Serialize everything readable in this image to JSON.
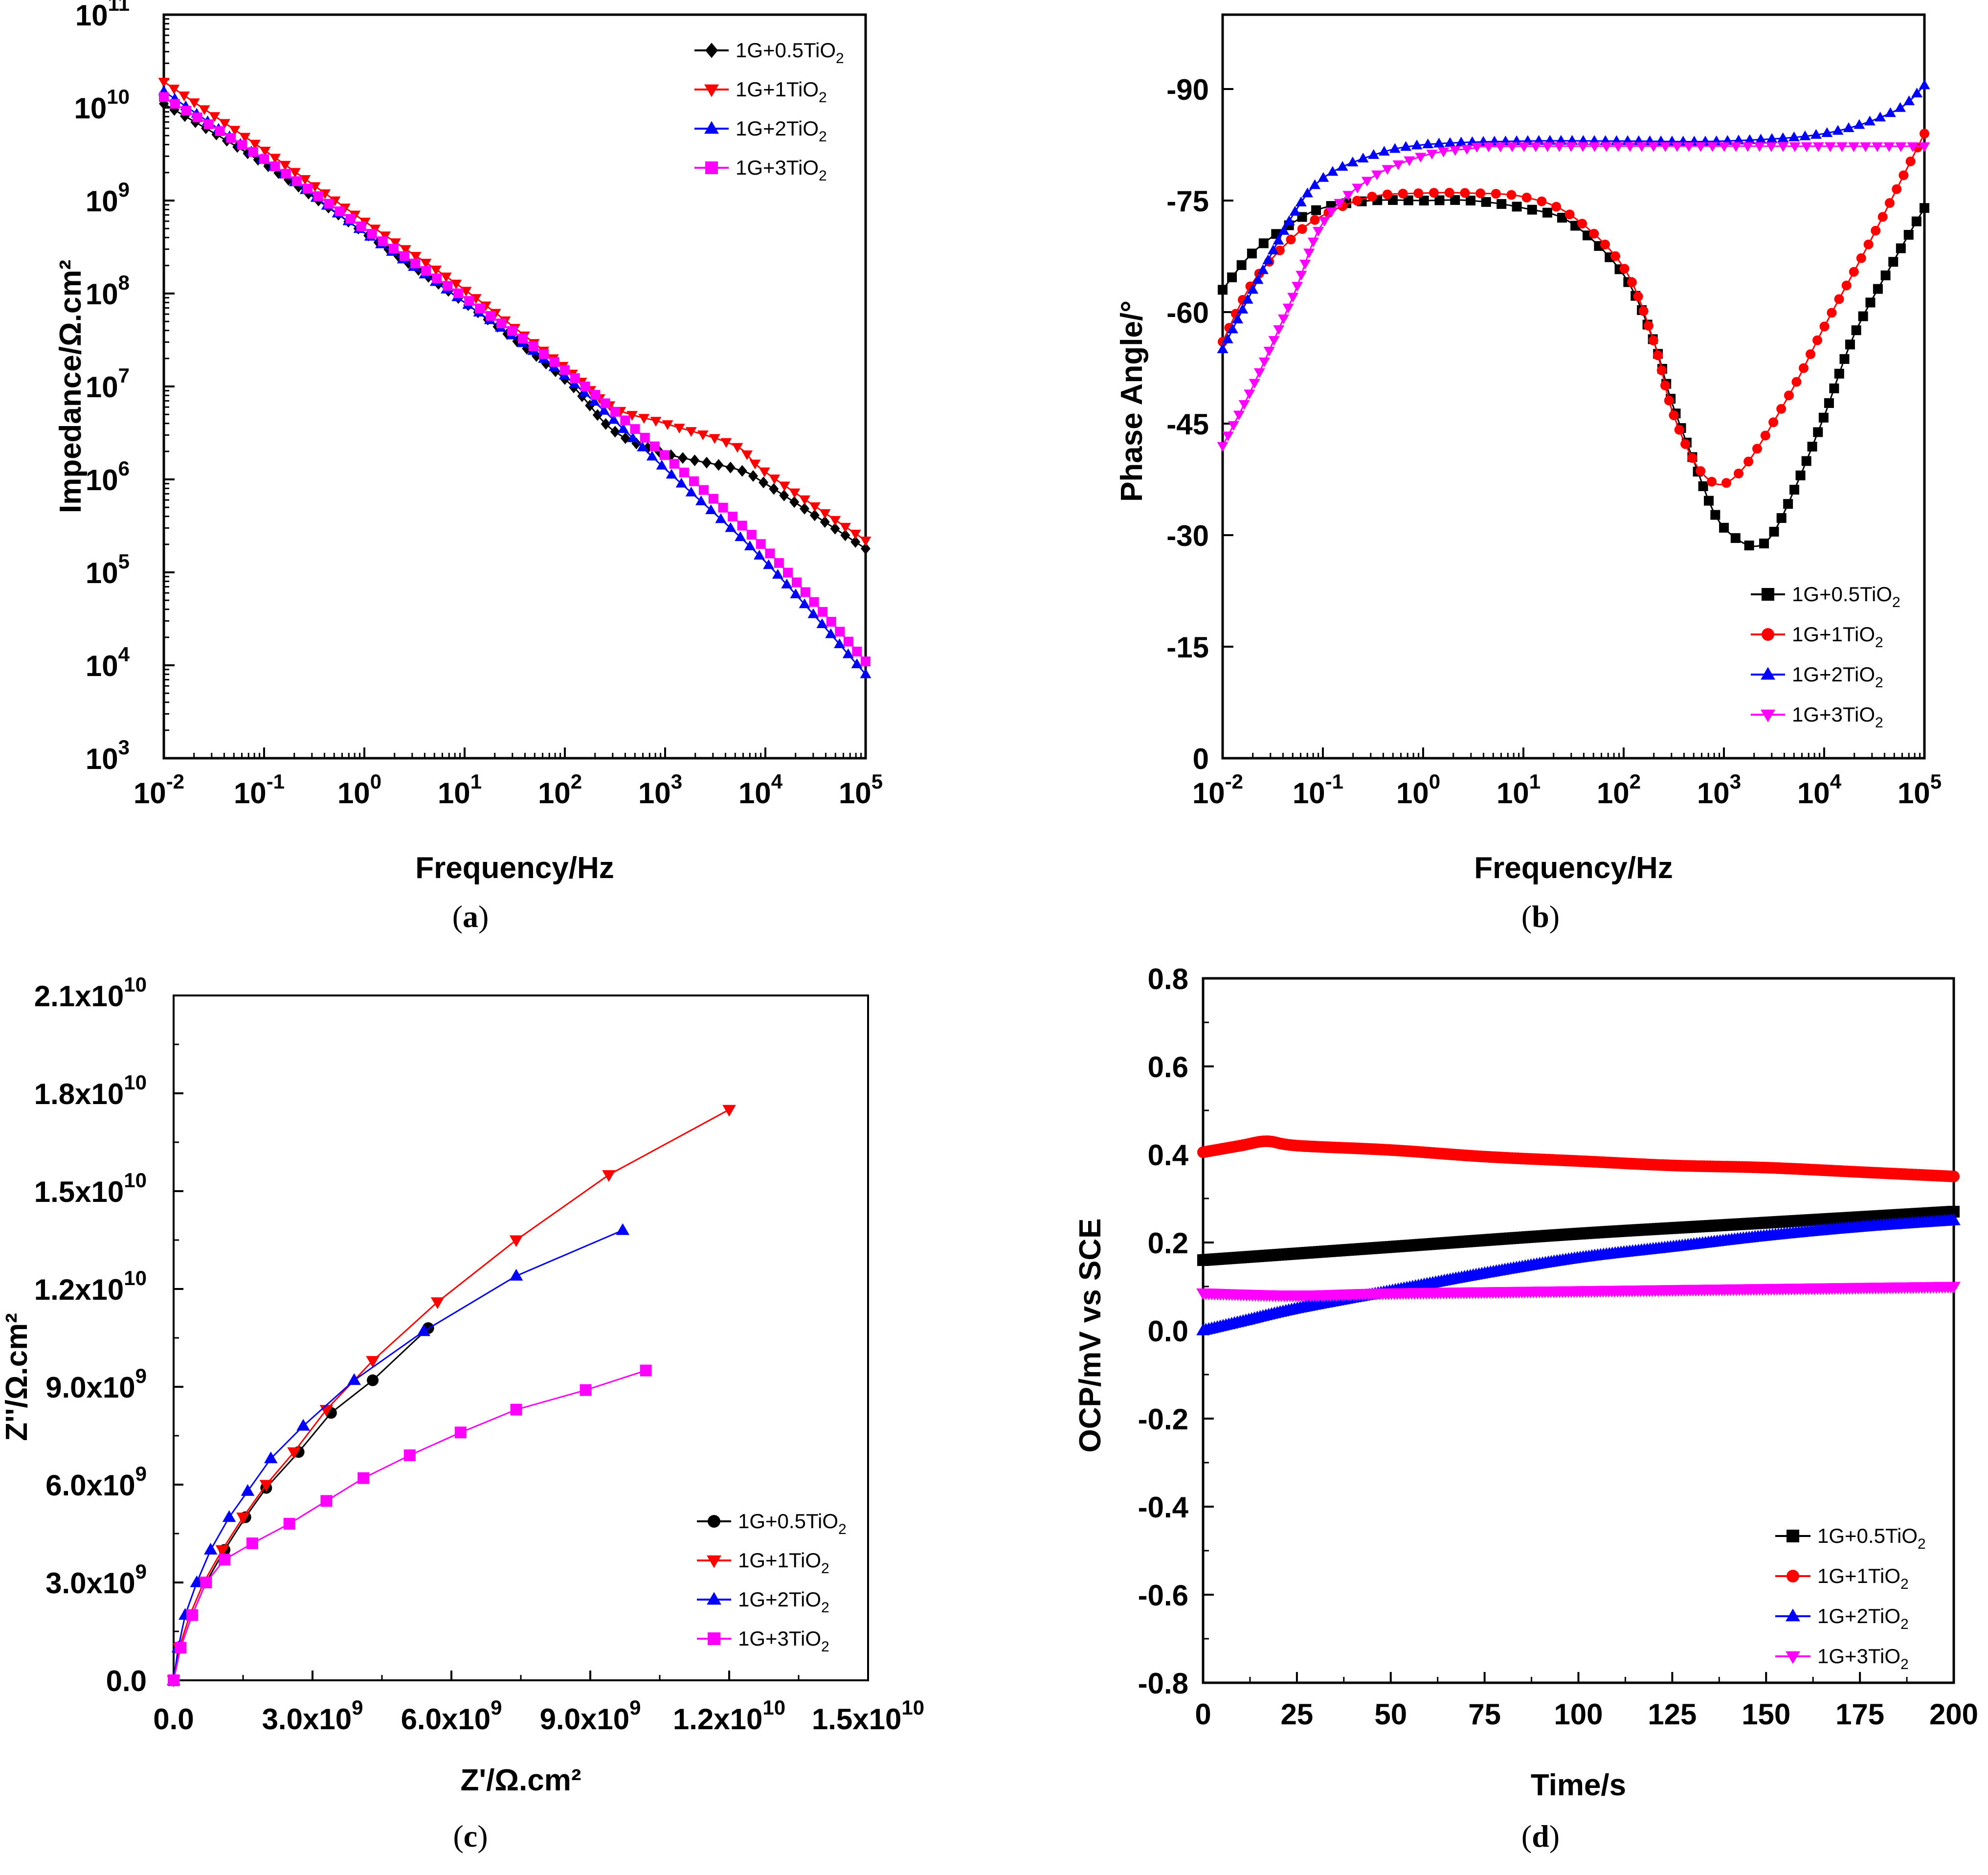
{
  "figure": {
    "captions": [
      "(a)",
      "(b)",
      "(c)",
      "(d)"
    ],
    "caption_letters": [
      "a",
      "b",
      "c",
      "d"
    ]
  },
  "legend_labels": [
    "1G+0.5TiO2",
    "1G+1TiO2",
    "1G+2TiO2",
    "1G+3TiO2"
  ],
  "series_colors": [
    "#000000",
    "#ff0000",
    "#0000ff",
    "#ff00ff"
  ],
  "chart_data": [
    {
      "id": "a",
      "type": "scatter",
      "title": "",
      "xlabel": "Frequency/Hz",
      "ylabel": "Impedance/Ω.cm²",
      "xscale": "log",
      "yscale": "log",
      "xlim": [
        0.01,
        100000
      ],
      "ylim": [
        1000,
        100000000000
      ],
      "x_tick_exponents": [
        "-2",
        "-1",
        "0",
        "1",
        "2",
        "3",
        "4",
        "5"
      ],
      "y_tick_exponents": [
        "3",
        "4",
        "5",
        "6",
        "7",
        "8",
        "9",
        "10",
        "11"
      ],
      "legend_position": "top-right",
      "series": [
        {
          "name": "1G+0.5TiO2",
          "color": "#000000",
          "marker": "diamond",
          "points": [
            [
              0.01,
              11000000000.0
            ],
            [
              0.1,
              2500000000.0
            ],
            [
              1,
              450000000.0
            ],
            [
              10,
              80000000.0
            ],
            [
              100,
              12000000.0
            ],
            [
              300,
              3400000.0
            ],
            [
              1000,
              1900000.0
            ],
            [
              5000,
              1300000.0
            ],
            [
              10000,
              900000.0
            ],
            [
              100000,
              180000.0
            ]
          ]
        },
        {
          "name": "1G+1TiO2",
          "color": "#ff0000",
          "marker": "triangle-down",
          "points": [
            [
              0.01,
              19000000000.0
            ],
            [
              0.1,
              3500000000.0
            ],
            [
              1,
              600000000.0
            ],
            [
              10,
              110000000.0
            ],
            [
              100,
              16000000.0
            ],
            [
              300,
              6000000.0
            ],
            [
              1000,
              4000000.0
            ],
            [
              5000,
              2300000.0
            ],
            [
              10000,
              1200000.0
            ],
            [
              100000,
              220000.0
            ]
          ]
        },
        {
          "name": "1G+2TiO2",
          "color": "#0000ff",
          "marker": "triangle-up",
          "points": [
            [
              0.01,
              15000000000.0
            ],
            [
              0.1,
              2700000000.0
            ],
            [
              1,
              450000000.0
            ],
            [
              10,
              80000000.0
            ],
            [
              100,
              13000000.0
            ],
            [
              1000,
              1300000.0
            ],
            [
              10000,
              130000.0
            ],
            [
              100000,
              8000.0
            ]
          ]
        },
        {
          "name": "1G+3TiO2",
          "color": "#ff00ff",
          "marker": "square",
          "points": [
            [
              0.01,
              13000000000.0
            ],
            [
              0.1,
              2800000000.0
            ],
            [
              1,
              500000000.0
            ],
            [
              10,
              90000000.0
            ],
            [
              100,
              15000000.0
            ],
            [
              1000,
              1800000.0
            ],
            [
              10000,
              180000.0
            ],
            [
              100000,
              11000.0
            ]
          ]
        }
      ]
    },
    {
      "id": "b",
      "type": "scatter",
      "title": "",
      "xlabel": "Frequency/Hz",
      "ylabel": "Phase Angle/°",
      "xscale": "log",
      "yscale": "linear",
      "xlim": [
        0.01,
        100000
      ],
      "ylim": [
        0,
        -100
      ],
      "x_tick_exponents": [
        "-2",
        "-1",
        "0",
        "1",
        "2",
        "3",
        "4",
        "5"
      ],
      "y_ticks": [
        0,
        -15,
        -30,
        -45,
        -60,
        -75,
        -90
      ],
      "y_tick_labels": [
        "0",
        "-15",
        "-30",
        "-45",
        "-60",
        "-75",
        "-90"
      ],
      "legend_position": "bottom-right",
      "series": [
        {
          "name": "1G+0.5TiO2",
          "color": "#000000",
          "marker": "square",
          "points": [
            [
              0.01,
              -63
            ],
            [
              0.02,
              -68
            ],
            [
              0.05,
              -72
            ],
            [
              0.1,
              -74
            ],
            [
              0.3,
              -75
            ],
            [
              1,
              -75
            ],
            [
              3,
              -75
            ],
            [
              10,
              -74
            ],
            [
              30,
              -72
            ],
            [
              100,
              -65
            ],
            [
              200,
              -56
            ],
            [
              300,
              -48
            ],
            [
              500,
              -40
            ],
            [
              800,
              -33
            ],
            [
              1200,
              -30
            ],
            [
              2000,
              -28.5
            ],
            [
              3000,
              -30
            ],
            [
              5000,
              -36
            ],
            [
              10000,
              -46
            ],
            [
              20000,
              -57
            ],
            [
              50000,
              -67
            ],
            [
              100000,
              -74
            ]
          ]
        },
        {
          "name": "1G+1TiO2",
          "color": "#ff0000",
          "marker": "circle",
          "points": [
            [
              0.01,
              -56
            ],
            [
              0.02,
              -64
            ],
            [
              0.05,
              -70
            ],
            [
              0.1,
              -73
            ],
            [
              0.3,
              -75.5
            ],
            [
              1,
              -76
            ],
            [
              3,
              -76
            ],
            [
              10,
              -75.5
            ],
            [
              30,
              -73
            ],
            [
              100,
              -66
            ],
            [
              200,
              -56
            ],
            [
              300,
              -47
            ],
            [
              500,
              -40
            ],
            [
              800,
              -37
            ],
            [
              1200,
              -37.5
            ],
            [
              2000,
              -41
            ],
            [
              5000,
              -50
            ],
            [
              10000,
              -58
            ],
            [
              30000,
              -70
            ],
            [
              100000,
              -84
            ]
          ]
        },
        {
          "name": "1G+2TiO2",
          "color": "#0000ff",
          "marker": "triangle-up",
          "points": [
            [
              0.01,
              -55
            ],
            [
              0.02,
              -63
            ],
            [
              0.05,
              -73
            ],
            [
              0.1,
              -78
            ],
            [
              0.3,
              -81
            ],
            [
              1,
              -82.5
            ],
            [
              10,
              -83
            ],
            [
              100,
              -83
            ],
            [
              1000,
              -83
            ],
            [
              10000,
              -84
            ],
            [
              50000,
              -87
            ],
            [
              100000,
              -90.5
            ]
          ]
        },
        {
          "name": "1G+3TiO2",
          "color": "#ff00ff",
          "marker": "triangle-down",
          "points": [
            [
              0.01,
              -42
            ],
            [
              0.02,
              -50
            ],
            [
              0.05,
              -62
            ],
            [
              0.1,
              -72
            ],
            [
              0.3,
              -78
            ],
            [
              1,
              -81
            ],
            [
              3,
              -82
            ],
            [
              10,
              -82.3
            ],
            [
              100000,
              -82.3
            ]
          ]
        }
      ]
    },
    {
      "id": "c",
      "type": "line",
      "title": "",
      "xlabel": "Z'/Ω.cm²",
      "ylabel": "Z''/Ω.cm²",
      "xlim": [
        0,
        15000000000
      ],
      "ylim": [
        0,
        21000000000
      ],
      "x_ticks": [
        0,
        3000000000,
        6000000000,
        9000000000,
        12000000000,
        15000000000
      ],
      "x_tick_labels": [
        "0.0",
        "3.0x10",
        "6.0x10",
        "9.0x10",
        "1.2x10",
        "1.5x10"
      ],
      "x_tick_exponents": [
        "",
        "9",
        "9",
        "9",
        "10",
        "10"
      ],
      "y_ticks": [
        0,
        3000000000,
        6000000000,
        9000000000,
        12000000000,
        15000000000,
        18000000000,
        21000000000
      ],
      "y_tick_labels": [
        "0.0",
        "3.0x10",
        "6.0x10",
        "9.0x10",
        "1.2x10",
        "1.5x10",
        "1.8x10",
        "2.1x10"
      ],
      "y_tick_exponents": [
        "",
        "9",
        "9",
        "9",
        "10",
        "10",
        "10",
        "10"
      ],
      "legend_position": "bottom-right",
      "series": [
        {
          "name": "1G+0.5TiO2",
          "color": "#000000",
          "marker": "circle",
          "points": [
            [
              0,
              0
            ],
            [
              150000000.0,
              1000000000.0
            ],
            [
              400000000.0,
              2000000000.0
            ],
            [
              700000000.0,
              3000000000.0
            ],
            [
              1100000000.0,
              4000000000.0
            ],
            [
              1550000000.0,
              5000000000.0
            ],
            [
              2000000000.0,
              5900000000.0
            ],
            [
              2700000000.0,
              7000000000.0
            ],
            [
              3400000000.0,
              8200000000.0
            ],
            [
              4300000000.0,
              9200000000.0
            ],
            [
              5500000000.0,
              10800000000.0
            ]
          ]
        },
        {
          "name": "1G+1TiO2",
          "color": "#ff0000",
          "marker": "triangle-down",
          "points": [
            [
              0,
              0
            ],
            [
              120000000.0,
              1000000000.0
            ],
            [
              350000000.0,
              2000000000.0
            ],
            [
              650000000.0,
              3000000000.0
            ],
            [
              1050000000.0,
              4000000000.0
            ],
            [
              1500000000.0,
              5000000000.0
            ],
            [
              2000000000.0,
              6000000000.0
            ],
            [
              2600000000.0,
              7000000000.0
            ],
            [
              3300000000.0,
              8300000000.0
            ],
            [
              4300000000.0,
              9800000000.0
            ],
            [
              5700000000.0,
              11600000000.0
            ],
            [
              7400000000.0,
              13500000000.0
            ],
            [
              9400000000.0,
              15500000000.0
            ],
            [
              12000000000.0,
              17500000000.0
            ]
          ]
        },
        {
          "name": "1G+2TiO2",
          "color": "#0000ff",
          "marker": "triangle-up",
          "points": [
            [
              0,
              0
            ],
            [
              100000000.0,
              1000000000.0
            ],
            [
              250000000.0,
              2000000000.0
            ],
            [
              500000000.0,
              3000000000.0
            ],
            [
              800000000.0,
              4000000000.0
            ],
            [
              1200000000.0,
              5000000000.0
            ],
            [
              1600000000.0,
              5800000000.0
            ],
            [
              2100000000.0,
              6800000000.0
            ],
            [
              2800000000.0,
              7800000000.0
            ],
            [
              3900000000.0,
              9200000000.0
            ],
            [
              5400000000.0,
              10700000000.0
            ],
            [
              7400000000.0,
              12400000000.0
            ],
            [
              9700000000.0,
              13800000000.0
            ]
          ]
        },
        {
          "name": "1G+3TiO2",
          "color": "#ff00ff",
          "marker": "square",
          "points": [
            [
              0,
              0
            ],
            [
              150000000.0,
              1000000000.0
            ],
            [
              400000000.0,
              2000000000.0
            ],
            [
              700000000.0,
              3000000000.0
            ],
            [
              1100000000.0,
              3700000000.0
            ],
            [
              1700000000.0,
              4200000000.0
            ],
            [
              2500000000.0,
              4800000000.0
            ],
            [
              3300000000.0,
              5500000000.0
            ],
            [
              4100000000.0,
              6200000000.0
            ],
            [
              5100000000.0,
              6900000000.0
            ],
            [
              6200000000.0,
              7600000000.0
            ],
            [
              7400000000.0,
              8300000000.0
            ],
            [
              8900000000.0,
              8900000000.0
            ],
            [
              10200000000.0,
              9500000000.0
            ]
          ]
        }
      ]
    },
    {
      "id": "d",
      "type": "line",
      "title": "",
      "xlabel": "Time/s",
      "ylabel": "OCP/mV vs SCE",
      "xlim": [
        0,
        200
      ],
      "ylim": [
        -0.8,
        0.8
      ],
      "x_ticks": [
        0,
        25,
        50,
        75,
        100,
        125,
        150,
        175,
        200
      ],
      "x_tick_labels": [
        "0",
        "25",
        "50",
        "75",
        "100",
        "125",
        "150",
        "175",
        "200"
      ],
      "y_ticks": [
        -0.8,
        -0.6,
        -0.4,
        -0.2,
        0,
        0.2,
        0.4,
        0.6,
        0.8
      ],
      "y_tick_labels": [
        "-0.8",
        "-0.6",
        "-0.4",
        "-0.2",
        "0.0",
        "0.2",
        "0.4",
        "0.6",
        "0.8"
      ],
      "legend_position": "bottom-right",
      "series": [
        {
          "name": "1G+0.5TiO2",
          "color": "#000000",
          "marker": "square",
          "points": [
            [
              0,
              0.16
            ],
            [
              50,
              0.19
            ],
            [
              100,
              0.22
            ],
            [
              150,
              0.245
            ],
            [
              200,
              0.27
            ]
          ]
        },
        {
          "name": "1G+1TiO2",
          "color": "#ff0000",
          "marker": "circle",
          "points": [
            [
              0,
              0.405
            ],
            [
              10,
              0.42
            ],
            [
              17,
              0.43
            ],
            [
              25,
              0.42
            ],
            [
              50,
              0.41
            ],
            [
              75,
              0.395
            ],
            [
              100,
              0.385
            ],
            [
              125,
              0.375
            ],
            [
              150,
              0.37
            ],
            [
              175,
              0.36
            ],
            [
              200,
              0.35
            ]
          ]
        },
        {
          "name": "1G+2TiO2",
          "color": "#0000ff",
          "marker": "triangle-up",
          "points": [
            [
              0,
              0
            ],
            [
              10,
              0.02
            ],
            [
              25,
              0.05
            ],
            [
              50,
              0.09
            ],
            [
              75,
              0.13
            ],
            [
              100,
              0.165
            ],
            [
              125,
              0.19
            ],
            [
              150,
              0.215
            ],
            [
              175,
              0.235
            ],
            [
              200,
              0.25
            ]
          ]
        },
        {
          "name": "1G+3TiO2",
          "color": "#ff00ff",
          "marker": "triangle-down",
          "points": [
            [
              0,
              0.085
            ],
            [
              25,
              0.08
            ],
            [
              50,
              0.085
            ],
            [
              100,
              0.09
            ],
            [
              150,
              0.095
            ],
            [
              200,
              0.1
            ]
          ]
        }
      ]
    }
  ]
}
